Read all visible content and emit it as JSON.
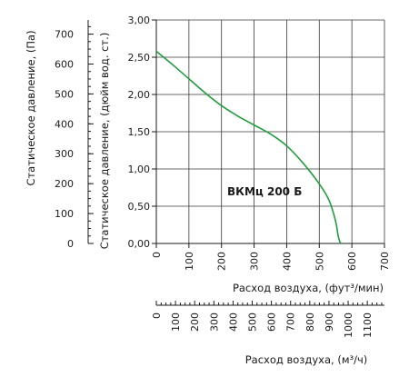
{
  "chart_data": {
    "type": "line",
    "title": "",
    "series": [
      {
        "name": "ВКМц 200 Б",
        "color": "#1e9e3e",
        "x": [
          0,
          50,
          100,
          150,
          200,
          250,
          300,
          350,
          400,
          450,
          500,
          530,
          550,
          558,
          565
        ],
        "y": [
          2.58,
          2.4,
          2.21,
          2.02,
          1.85,
          1.71,
          1.59,
          1.47,
          1.31,
          1.08,
          0.8,
          0.58,
          0.3,
          0.1,
          0.0
        ]
      }
    ],
    "axes": {
      "x_cfm": {
        "label": "Расход воздуха, (фут³/мин)",
        "min": 0,
        "max": 700,
        "ticks": [
          "0",
          "100",
          "200",
          "300",
          "400",
          "500",
          "600",
          "700"
        ]
      },
      "x_m3h": {
        "label": "Расход воздуха, (м³/ч)",
        "min": 0,
        "max": 1189.3,
        "ticks": [
          "0",
          "100",
          "200",
          "300",
          "400",
          "500",
          "600",
          "700",
          "800",
          "900",
          "1000",
          "1100"
        ]
      },
      "y_inwg": {
        "label": "Статическое давление, (дюйм вод. ст.)",
        "min": 0,
        "max": 3.0,
        "ticks": [
          "0,00",
          "0,50",
          "1,00",
          "1,50",
          "2,00",
          "2,50",
          "3,00"
        ]
      },
      "y_pa": {
        "label": "Статическое давление, (Па)",
        "min": 0,
        "max": 747.3,
        "ticks": [
          "0",
          "100",
          "200",
          "300",
          "400",
          "500",
          "600",
          "700"
        ]
      }
    },
    "grid": true
  }
}
